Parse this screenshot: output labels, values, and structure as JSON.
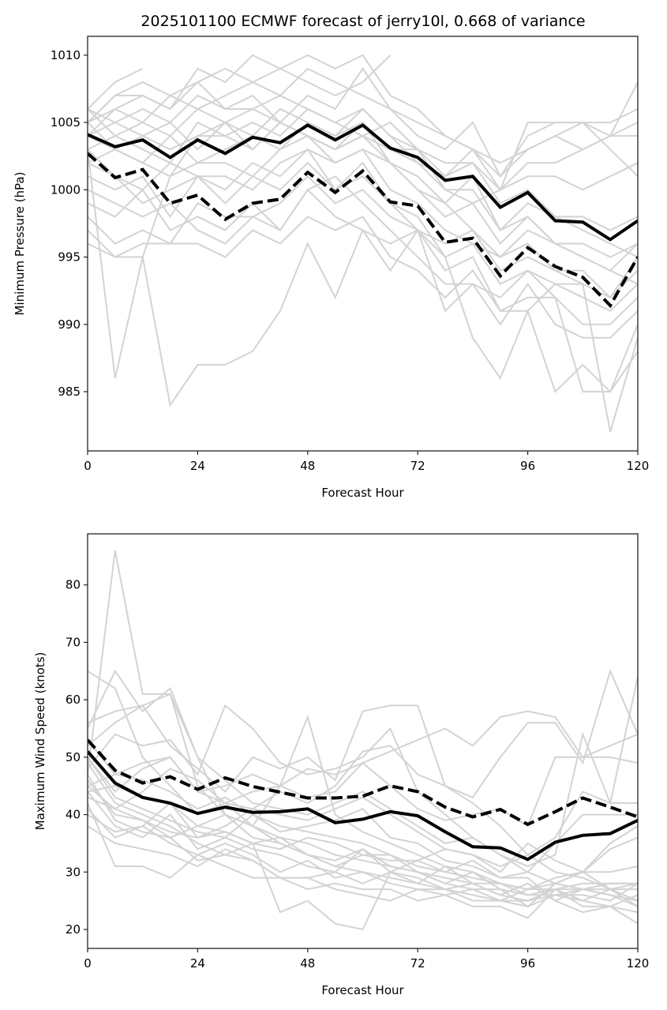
{
  "chart_data": [
    {
      "type": "line",
      "title": "2025101100 ECMWF forecast of jerry10l, 0.668 of variance",
      "xlabel": "Forecast Hour",
      "ylabel": "Minimum Pressure (hPa)",
      "xlim": [
        0,
        120
      ],
      "ylim": [
        980.6,
        1011.4
      ],
      "xticks": [
        0,
        24,
        48,
        72,
        96,
        120
      ],
      "yticks": [
        985,
        990,
        995,
        1000,
        1005,
        1010
      ],
      "grid": false,
      "x": [
        0,
        6,
        12,
        18,
        24,
        30,
        36,
        42,
        48,
        54,
        60,
        66,
        72,
        78,
        84,
        90,
        96,
        102,
        108,
        114,
        120
      ],
      "series": [
        {
          "name": "solid",
          "style": "solid",
          "color": "#000000",
          "values": [
            1004.1,
            1003.2,
            1003.7,
            1002.4,
            1003.7,
            1002.7,
            1003.9,
            1003.5,
            1004.8,
            1003.7,
            1004.8,
            1003.1,
            1002.4,
            1000.7,
            1001.0,
            998.7,
            999.8,
            997.7,
            997.6,
            996.3,
            997.7
          ]
        },
        {
          "name": "dashed",
          "style": "dashed",
          "color": "#000000",
          "values": [
            1002.7,
            1000.9,
            1001.5,
            999.0,
            999.6,
            997.8,
            999.0,
            999.3,
            1001.3,
            999.8,
            1001.4,
            999.1,
            998.8,
            996.1,
            996.4,
            993.6,
            995.7,
            994.3,
            993.5,
            991.4,
            995.0
          ]
        }
      ],
      "members_color": "#d3d3d3",
      "members": [
        [
          1003,
          986,
          995,
          1001,
          1004,
          1005,
          1006,
          1005,
          1004,
          1003,
          1004,
          1002,
          1000,
          999,
          997,
          995,
          997,
          996,
          995,
          994,
          993
        ],
        [
          996,
          995,
          995,
          984,
          987,
          987,
          988,
          991,
          996,
          992,
          997,
          994,
          997,
          995,
          989,
          986,
          991,
          985,
          987,
          985,
          988
        ],
        [
          1006,
          1008,
          1009,
          null,
          null,
          null,
          null,
          null,
          null,
          null,
          null,
          null,
          null,
          null,
          null,
          null,
          null,
          null,
          null,
          null,
          null
        ],
        [
          1005,
          1007,
          1008,
          1007,
          1008,
          1009,
          1008,
          1009,
          1010,
          1009,
          1010,
          1007,
          1006,
          1004,
          1003,
          1002,
          1003,
          1004,
          1005,
          1005,
          1006
        ],
        [
          1005,
          1006,
          1007,
          1006,
          1009,
          1008,
          1010,
          1009,
          1008,
          1007,
          1008,
          1010,
          null,
          null,
          null,
          null,
          null,
          null,
          null,
          null,
          null
        ],
        [
          1004,
          1006,
          1005,
          1007,
          1006,
          1007,
          1008,
          1007,
          1009,
          1008,
          1007,
          1006,
          1005,
          1004,
          1003,
          1001,
          1003,
          1004,
          1003,
          1004,
          1004
        ],
        [
          1006,
          1005,
          1006,
          1005,
          1007,
          1006,
          1006,
          1007,
          1006,
          1005,
          1006,
          1004,
          1003,
          1002,
          1002,
          1000,
          1002,
          1002,
          1003,
          1004,
          1005
        ],
        [
          1005,
          1007,
          1007,
          1006,
          1008,
          1006,
          1007,
          1005,
          1007,
          1006,
          1009,
          1006,
          1004,
          1003,
          1005,
          1001,
          1004,
          1005,
          1005,
          1004,
          1008
        ],
        [
          1003,
          1004,
          1005,
          1004,
          1006,
          1005,
          1004,
          1006,
          1005,
          1004,
          1005,
          1003,
          1002,
          1001,
          1003,
          1000,
          1005,
          1005,
          1005,
          1003,
          1001
        ],
        [
          1004,
          1005,
          1004,
          1003,
          1004,
          1004,
          1005,
          1004,
          1006,
          1005,
          1004,
          1005,
          1003,
          1000,
          999,
          1000,
          1001,
          1001,
          1000,
          1001,
          1002
        ],
        [
          1005,
          1003,
          1004,
          1005,
          1003,
          1005,
          1003,
          1005,
          1004,
          1002,
          1003,
          1002,
          1001,
          999,
          1001,
          997,
          999,
          998,
          997,
          996,
          995
        ],
        [
          1002,
          1003,
          1002,
          1004,
          1002,
          1003,
          1004,
          1003,
          1004,
          1003,
          1005,
          1002,
          1000,
          998,
          999,
          996,
          998,
          996,
          996,
          995,
          996
        ],
        [
          1003,
          1001,
          1000,
          1002,
          1001,
          1000,
          1002,
          1001,
          1003,
          1002,
          1003,
          1000,
          999,
          997,
          996,
          995,
          996,
          994,
          994,
          992,
          994
        ],
        [
          1001,
          1000,
          1001,
          998,
          1001,
          999,
          1001,
          1000,
          1002,
          1000,
          1002,
          999,
          998,
          995,
          996,
          993,
          994,
          993,
          992,
          991,
          993
        ],
        [
          1000,
          999,
          998,
          999,
          997,
          996,
          998,
          999,
          1001,
          999,
          1000,
          998,
          997,
          994,
          995,
          991,
          992,
          992,
          990,
          990,
          992
        ],
        [
          999,
          998,
          1000,
          997,
          998,
          997,
          999,
          997,
          1000,
          1001,
          999,
          997,
          995,
          993,
          993,
          990,
          993,
          990,
          989,
          989,
          991
        ],
        [
          998,
          996,
          997,
          996,
          996,
          995,
          997,
          996,
          998,
          997,
          998,
          995,
          994,
          992,
          994,
          991,
          991,
          993,
          993,
          982,
          989
        ],
        [
          997,
          995,
          996,
          996,
          999,
          998,
          998,
          997,
          1000,
          998,
          997,
          996,
          997,
          991,
          993,
          992,
          994,
          992,
          985,
          985,
          990
        ],
        [
          1002,
          1001,
          999,
          1000,
          1001,
          1001,
          1000,
          1002,
          1003,
          1000,
          1001,
          999,
          997,
          996,
          997,
          994,
          995,
          994,
          993,
          992,
          995
        ],
        [
          1006,
          1004,
          1003,
          1002,
          1005,
          1004,
          1003,
          1005,
          1004,
          1003,
          1004,
          1003,
          1003,
          1001,
          1002,
          999,
          1000,
          998,
          998,
          997,
          998
        ],
        [
          1004,
          1003,
          1002,
          1001,
          1002,
          1002,
          1001,
          1003,
          1005,
          1004,
          1006,
          1004,
          1002,
          1000,
          1000,
          997,
          998,
          996,
          995,
          994,
          996
        ]
      ]
    },
    {
      "type": "line",
      "title": "",
      "xlabel": "Forecast Hour",
      "ylabel": "Maximum Wind Speed (knots)",
      "xlim": [
        0,
        120
      ],
      "ylim": [
        16.7,
        88.9
      ],
      "xticks": [
        0,
        24,
        48,
        72,
        96,
        120
      ],
      "yticks": [
        20,
        30,
        40,
        50,
        60,
        70,
        80
      ],
      "grid": false,
      "x": [
        0,
        6,
        12,
        18,
        24,
        30,
        36,
        42,
        48,
        54,
        60,
        66,
        72,
        78,
        84,
        90,
        96,
        102,
        108,
        114,
        120
      ],
      "series": [
        {
          "name": "solid",
          "style": "solid",
          "color": "#000000",
          "values": [
            51.0,
            45.5,
            43.0,
            42.0,
            40.2,
            41.3,
            40.4,
            40.5,
            41.0,
            38.6,
            39.2,
            40.5,
            39.8,
            37.0,
            34.4,
            34.2,
            32.2,
            35.2,
            36.4,
            36.7,
            39.0
          ]
        },
        {
          "name": "dashed",
          "style": "dashed",
          "color": "#000000",
          "values": [
            53.0,
            47.7,
            45.5,
            46.6,
            44.4,
            46.4,
            44.9,
            43.9,
            42.9,
            42.9,
            43.2,
            45.0,
            44.0,
            41.3,
            39.6,
            40.9,
            38.3,
            40.5,
            42.9,
            41.3,
            39.6
          ]
        }
      ],
      "members_color": "#d3d3d3",
      "members": [
        [
          47,
          86,
          61,
          61,
          45,
          40,
          38,
          35,
          33,
          31,
          30,
          29,
          28,
          27,
          26,
          25,
          25,
          26,
          27,
          28,
          28
        ],
        [
          65,
          62,
          50,
          45,
          40,
          42,
          38,
          36,
          35,
          33,
          32,
          31,
          30,
          28,
          27,
          27,
          26,
          27,
          27,
          26,
          25
        ],
        [
          55,
          65,
          58,
          62,
          50,
          40,
          38,
          45,
          57,
          40,
          37,
          35,
          33,
          31,
          30,
          28,
          27,
          28,
          27,
          26,
          24
        ],
        [
          52,
          56,
          59,
          52,
          48,
          44,
          50,
          48,
          50,
          46,
          58,
          59,
          59,
          45,
          42,
          38,
          33,
          30,
          29,
          27,
          27
        ],
        [
          48,
          54,
          52,
          53,
          47,
          59,
          55,
          49,
          47,
          48,
          50,
          55,
          44,
          40,
          36,
          33,
          30,
          28,
          30,
          35,
          38
        ],
        [
          50,
          44,
          48,
          50,
          44,
          45,
          47,
          45,
          48,
          47,
          49,
          51,
          53,
          55,
          52,
          57,
          58,
          57,
          50,
          52,
          54
        ],
        [
          45,
          47,
          49,
          50,
          44,
          42,
          41,
          44,
          42,
          45,
          51,
          52,
          47,
          45,
          43,
          50,
          56,
          56,
          49,
          65,
          54
        ],
        [
          43,
          41,
          44,
          48,
          46,
          42,
          44,
          45,
          43,
          44,
          49,
          45,
          41,
          39,
          40,
          41,
          38,
          50,
          50,
          50,
          49
        ],
        [
          56,
          58,
          59,
          61,
          50,
          46,
          42,
          41,
          40,
          42,
          44,
          41,
          38,
          35,
          36,
          33,
          31,
          33,
          54,
          42,
          64
        ],
        [
          40,
          37,
          38,
          42,
          36,
          38,
          41,
          40,
          39,
          41,
          43,
          40,
          37,
          34,
          33,
          31,
          33,
          36,
          44,
          42,
          42
        ],
        [
          44,
          38,
          36,
          40,
          34,
          36,
          40,
          37,
          38,
          39,
          41,
          36,
          35,
          32,
          31,
          29,
          30,
          35,
          40,
          40,
          40
        ],
        [
          46,
          40,
          39,
          36,
          38,
          37,
          35,
          34,
          36,
          35,
          33,
          33,
          31,
          30,
          29,
          28,
          27,
          29,
          30,
          34,
          36
        ],
        [
          49,
          42,
          40,
          38,
          35,
          33,
          35,
          36,
          33,
          32,
          34,
          31,
          30,
          29,
          28,
          28,
          26,
          26,
          26,
          25,
          28
        ],
        [
          41,
          36,
          38,
          35,
          33,
          35,
          33,
          30,
          32,
          29,
          30,
          28,
          27,
          26,
          27,
          25,
          27,
          27,
          25,
          24,
          26
        ],
        [
          38,
          35,
          34,
          33,
          31,
          34,
          32,
          29,
          29,
          30,
          28,
          30,
          28,
          31,
          28,
          26,
          25,
          27,
          28,
          28,
          28
        ],
        [
          42,
          31,
          31,
          29,
          33,
          31,
          29,
          29,
          27,
          28,
          27,
          27,
          25,
          26,
          24,
          24,
          22,
          27,
          24,
          24,
          21
        ],
        [
          47,
          39,
          37,
          36,
          32,
          33,
          32,
          29,
          29,
          27,
          26,
          25,
          27,
          27,
          28,
          26,
          28,
          25,
          27,
          27,
          24
        ],
        [
          44,
          45,
          43,
          42,
          38,
          40,
          36,
          35,
          33,
          31,
          33,
          32,
          32,
          30,
          32,
          29,
          29,
          25,
          23,
          24,
          23
        ],
        [
          50,
          43,
          41,
          39,
          37,
          36,
          34,
          33,
          31,
          30,
          34,
          30,
          29,
          27,
          25,
          25,
          24,
          26,
          25,
          27,
          28
        ],
        [
          53,
          47,
          46,
          44,
          41,
          43,
          40,
          38,
          37,
          36,
          35,
          33,
          30,
          28,
          30,
          27,
          24,
          28,
          30,
          27,
          25
        ],
        [
          45,
          41,
          39,
          37,
          36,
          37,
          35,
          23,
          25,
          21,
          20,
          30,
          32,
          34,
          33,
          30,
          35,
          32,
          30,
          30,
          31
        ]
      ]
    }
  ]
}
